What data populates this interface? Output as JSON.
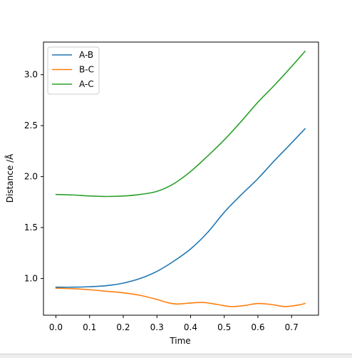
{
  "chart_data": {
    "type": "line",
    "title": "",
    "xlabel": "Time",
    "ylabel": "Distance /Å",
    "xlim": [
      -0.037,
      0.78
    ],
    "ylim": [
      0.64,
      3.32
    ],
    "xticks": [
      "0.0",
      "0.1",
      "0.2",
      "0.3",
      "0.4",
      "0.5",
      "0.6",
      "0.7"
    ],
    "yticks": [
      "1.0",
      "1.5",
      "2.0",
      "2.5",
      "3.0"
    ],
    "grid": false,
    "legend_position": "top-left",
    "series": [
      {
        "name": "A-B",
        "color": "#1f77b4",
        "x": [
          0.0,
          0.05,
          0.1,
          0.15,
          0.2,
          0.25,
          0.3,
          0.35,
          0.4,
          0.45,
          0.5,
          0.55,
          0.6,
          0.65,
          0.7,
          0.74
        ],
        "values": [
          0.915,
          0.915,
          0.92,
          0.93,
          0.955,
          1.0,
          1.07,
          1.17,
          1.29,
          1.45,
          1.65,
          1.82,
          1.98,
          2.16,
          2.33,
          2.47
        ]
      },
      {
        "name": "B-C",
        "color": "#ff7f0e",
        "x": [
          0.0,
          0.05,
          0.1,
          0.15,
          0.2,
          0.25,
          0.3,
          0.33,
          0.36,
          0.4,
          0.44,
          0.48,
          0.52,
          0.56,
          0.6,
          0.64,
          0.68,
          0.72,
          0.74
        ],
        "values": [
          0.905,
          0.9,
          0.89,
          0.875,
          0.86,
          0.835,
          0.795,
          0.765,
          0.75,
          0.76,
          0.765,
          0.745,
          0.725,
          0.735,
          0.755,
          0.745,
          0.725,
          0.74,
          0.755
        ]
      },
      {
        "name": "A-C",
        "color": "#2ca02c",
        "x": [
          0.0,
          0.05,
          0.1,
          0.15,
          0.2,
          0.25,
          0.3,
          0.35,
          0.4,
          0.45,
          0.5,
          0.55,
          0.6,
          0.65,
          0.7,
          0.74
        ],
        "values": [
          1.825,
          1.82,
          1.81,
          1.805,
          1.81,
          1.825,
          1.855,
          1.93,
          2.05,
          2.2,
          2.36,
          2.54,
          2.73,
          2.9,
          3.08,
          3.23
        ]
      }
    ]
  }
}
